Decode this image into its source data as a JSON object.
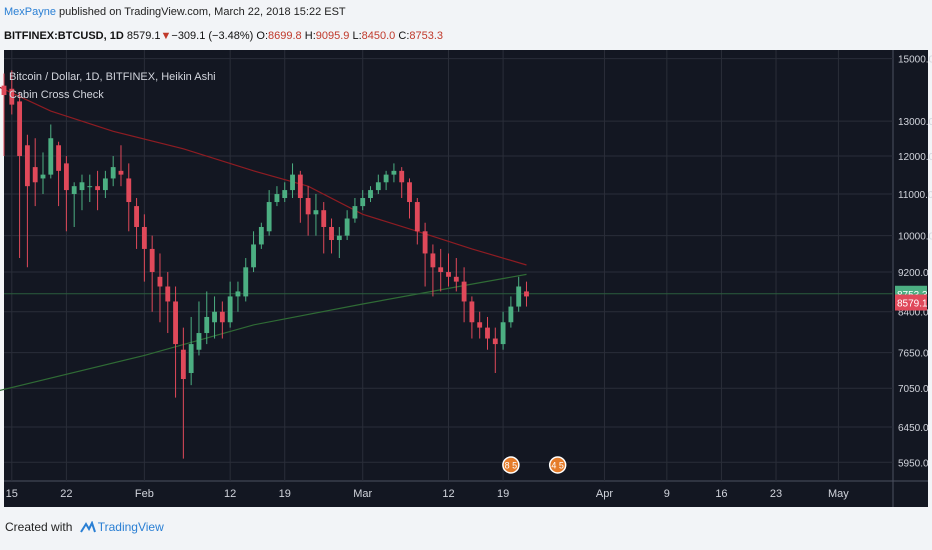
{
  "header": {
    "author": "MexPayne",
    "published_text": "published on TradingView.com, March 22, 2018 15:22 EST",
    "symbol": "BITFINEX:BTCUSD, 1D",
    "last": "8579.1",
    "change": "−309.1 (−3.48%)",
    "o_label": "O:",
    "o_value": "8699.8",
    "h_label": "H:",
    "h_value": "9095.9",
    "l_label": "L:",
    "l_value": "8450.0",
    "c_label": "C:",
    "c_value": "8753.3"
  },
  "legend": {
    "series_title": "Bitcoin / Dollar, 1D, BITFINEX, Heikin Ashi",
    "indicator_title": "Cabin Cross Check"
  },
  "footer": {
    "created_with": "Created with",
    "brand": "TradingView"
  },
  "colors": {
    "background": "#131722",
    "grid": "#2a2e39",
    "up": "#4caf82",
    "down": "#e0495a",
    "ma_red": "#8e1c22",
    "ma_green": "#2f6b35",
    "price_line": "#2a5d3c"
  },
  "chart_data": {
    "type": "candlestick",
    "style": "Heikin Ashi",
    "yscale": "log",
    "ylim": [
      5700,
      15300
    ],
    "xlim": [
      "2018-01-14",
      "2018-05-08"
    ],
    "y_ticks": [
      15000.0,
      13000.0,
      12000.0,
      11000.0,
      10000.0,
      9200.0,
      8400.0,
      7650.0,
      7050.0,
      6450.0,
      5950.0
    ],
    "x_ticks": [
      {
        "date": "2018-01-15",
        "label": "15"
      },
      {
        "date": "2018-01-22",
        "label": "22"
      },
      {
        "date": "2018-02-01",
        "label": "Feb"
      },
      {
        "date": "2018-02-12",
        "label": "12"
      },
      {
        "date": "2018-02-19",
        "label": "19"
      },
      {
        "date": "2018-03-01",
        "label": "Mar"
      },
      {
        "date": "2018-03-12",
        "label": "12"
      },
      {
        "date": "2018-03-19",
        "label": "19"
      },
      {
        "date": "2018-04-01",
        "label": "Apr"
      },
      {
        "date": "2018-04-09",
        "label": "9"
      },
      {
        "date": "2018-04-16",
        "label": "16"
      },
      {
        "date": "2018-04-23",
        "label": "23"
      },
      {
        "date": "2018-05-01",
        "label": "May"
      }
    ],
    "candles": [
      {
        "date": "2018-01-13",
        "o": 14300,
        "h": 14500,
        "l": 11800,
        "c": 13900
      },
      {
        "date": "2018-01-14",
        "o": 14100,
        "h": 14500,
        "l": 12000,
        "c": 13800
      },
      {
        "date": "2018-01-15",
        "o": 14000,
        "h": 14600,
        "l": 13200,
        "c": 13500
      },
      {
        "date": "2018-01-16",
        "o": 13600,
        "h": 13900,
        "l": 9500,
        "c": 12000
      },
      {
        "date": "2018-01-17",
        "o": 12300,
        "h": 12600,
        "l": 9300,
        "c": 11200
      },
      {
        "date": "2018-01-18",
        "o": 11700,
        "h": 12500,
        "l": 10700,
        "c": 11300
      },
      {
        "date": "2018-01-19",
        "o": 11400,
        "h": 12100,
        "l": 11000,
        "c": 11500
      },
      {
        "date": "2018-01-20",
        "o": 11500,
        "h": 12900,
        "l": 11400,
        "c": 12500
      },
      {
        "date": "2018-01-21",
        "o": 12300,
        "h": 12400,
        "l": 10700,
        "c": 11600
      },
      {
        "date": "2018-01-22",
        "o": 11800,
        "h": 12000,
        "l": 10100,
        "c": 11100
      },
      {
        "date": "2018-01-23",
        "o": 11000,
        "h": 11300,
        "l": 10200,
        "c": 11200
      },
      {
        "date": "2018-01-24",
        "o": 11100,
        "h": 11500,
        "l": 10600,
        "c": 11300
      },
      {
        "date": "2018-01-25",
        "o": 11200,
        "h": 11500,
        "l": 10800,
        "c": 11200
      },
      {
        "date": "2018-01-26",
        "o": 11200,
        "h": 11600,
        "l": 10600,
        "c": 11100
      },
      {
        "date": "2018-01-27",
        "o": 11100,
        "h": 11600,
        "l": 10900,
        "c": 11400
      },
      {
        "date": "2018-01-28",
        "o": 11400,
        "h": 12000,
        "l": 11200,
        "c": 11700
      },
      {
        "date": "2018-01-29",
        "o": 11600,
        "h": 12300,
        "l": 11200,
        "c": 11500
      },
      {
        "date": "2018-01-30",
        "o": 11400,
        "h": 11800,
        "l": 10100,
        "c": 10800
      },
      {
        "date": "2018-01-31",
        "o": 10700,
        "h": 10900,
        "l": 9700,
        "c": 10200
      },
      {
        "date": "2018-02-01",
        "o": 10200,
        "h": 10500,
        "l": 9000,
        "c": 9700
      },
      {
        "date": "2018-02-02",
        "o": 9700,
        "h": 10000,
        "l": 8400,
        "c": 9200
      },
      {
        "date": "2018-02-03",
        "o": 9100,
        "h": 9600,
        "l": 8200,
        "c": 8900
      },
      {
        "date": "2018-02-04",
        "o": 8900,
        "h": 9200,
        "l": 8000,
        "c": 8600
      },
      {
        "date": "2018-02-05",
        "o": 8600,
        "h": 8900,
        "l": 6900,
        "c": 7800
      },
      {
        "date": "2018-02-06",
        "o": 7700,
        "h": 8100,
        "l": 6000,
        "c": 7200
      },
      {
        "date": "2018-02-07",
        "o": 7300,
        "h": 8300,
        "l": 7100,
        "c": 7800
      },
      {
        "date": "2018-02-08",
        "o": 7700,
        "h": 8600,
        "l": 7600,
        "c": 8000
      },
      {
        "date": "2018-02-09",
        "o": 8000,
        "h": 8800,
        "l": 7800,
        "c": 8300
      },
      {
        "date": "2018-02-10",
        "o": 8200,
        "h": 8700,
        "l": 7900,
        "c": 8400
      },
      {
        "date": "2018-02-11",
        "o": 8400,
        "h": 8600,
        "l": 7900,
        "c": 8200
      },
      {
        "date": "2018-02-12",
        "o": 8200,
        "h": 9000,
        "l": 8100,
        "c": 8700
      },
      {
        "date": "2018-02-13",
        "o": 8700,
        "h": 9000,
        "l": 8400,
        "c": 8800
      },
      {
        "date": "2018-02-14",
        "o": 8700,
        "h": 9500,
        "l": 8600,
        "c": 9300
      },
      {
        "date": "2018-02-15",
        "o": 9300,
        "h": 10100,
        "l": 9200,
        "c": 9800
      },
      {
        "date": "2018-02-16",
        "o": 9800,
        "h": 10300,
        "l": 9700,
        "c": 10200
      },
      {
        "date": "2018-02-17",
        "o": 10100,
        "h": 11100,
        "l": 10000,
        "c": 10800
      },
      {
        "date": "2018-02-18",
        "o": 10800,
        "h": 11200,
        "l": 10700,
        "c": 11000
      },
      {
        "date": "2018-02-19",
        "o": 10900,
        "h": 11300,
        "l": 10800,
        "c": 11100
      },
      {
        "date": "2018-02-20",
        "o": 11100,
        "h": 11800,
        "l": 10900,
        "c": 11500
      },
      {
        "date": "2018-02-21",
        "o": 11500,
        "h": 11600,
        "l": 10300,
        "c": 10900
      },
      {
        "date": "2018-02-22",
        "o": 10900,
        "h": 11200,
        "l": 10000,
        "c": 10500
      },
      {
        "date": "2018-02-23",
        "o": 10500,
        "h": 11000,
        "l": 10000,
        "c": 10600
      },
      {
        "date": "2018-02-24",
        "o": 10600,
        "h": 10800,
        "l": 9600,
        "c": 10200
      },
      {
        "date": "2018-02-25",
        "o": 10200,
        "h": 10400,
        "l": 9600,
        "c": 9900
      },
      {
        "date": "2018-02-26",
        "o": 9900,
        "h": 10200,
        "l": 9500,
        "c": 10000
      },
      {
        "date": "2018-02-27",
        "o": 10000,
        "h": 10600,
        "l": 9900,
        "c": 10400
      },
      {
        "date": "2018-02-28",
        "o": 10400,
        "h": 10900,
        "l": 10300,
        "c": 10700
      },
      {
        "date": "2018-03-01",
        "o": 10700,
        "h": 11100,
        "l": 10600,
        "c": 10900
      },
      {
        "date": "2018-03-02",
        "o": 10900,
        "h": 11200,
        "l": 10800,
        "c": 11100
      },
      {
        "date": "2018-03-03",
        "o": 11100,
        "h": 11500,
        "l": 11000,
        "c": 11300
      },
      {
        "date": "2018-03-04",
        "o": 11300,
        "h": 11600,
        "l": 11100,
        "c": 11500
      },
      {
        "date": "2018-03-05",
        "o": 11500,
        "h": 11800,
        "l": 11300,
        "c": 11600
      },
      {
        "date": "2018-03-06",
        "o": 11600,
        "h": 11700,
        "l": 10900,
        "c": 11300
      },
      {
        "date": "2018-03-07",
        "o": 11300,
        "h": 11400,
        "l": 10400,
        "c": 10800
      },
      {
        "date": "2018-03-08",
        "o": 10800,
        "h": 10900,
        "l": 9800,
        "c": 10100
      },
      {
        "date": "2018-03-09",
        "o": 10100,
        "h": 10300,
        "l": 8900,
        "c": 9600
      },
      {
        "date": "2018-03-10",
        "o": 9600,
        "h": 9800,
        "l": 8700,
        "c": 9300
      },
      {
        "date": "2018-03-11",
        "o": 9300,
        "h": 9700,
        "l": 8800,
        "c": 9200
      },
      {
        "date": "2018-03-12",
        "o": 9200,
        "h": 9600,
        "l": 8900,
        "c": 9100
      },
      {
        "date": "2018-03-13",
        "o": 9100,
        "h": 9500,
        "l": 8800,
        "c": 9000
      },
      {
        "date": "2018-03-14",
        "o": 9000,
        "h": 9300,
        "l": 8200,
        "c": 8600
      },
      {
        "date": "2018-03-15",
        "o": 8600,
        "h": 8700,
        "l": 7900,
        "c": 8200
      },
      {
        "date": "2018-03-16",
        "o": 8200,
        "h": 8400,
        "l": 7900,
        "c": 8100
      },
      {
        "date": "2018-03-17",
        "o": 8100,
        "h": 8300,
        "l": 7700,
        "c": 7900
      },
      {
        "date": "2018-03-18",
        "o": 7900,
        "h": 8100,
        "l": 7300,
        "c": 7800
      },
      {
        "date": "2018-03-19",
        "o": 7800,
        "h": 8400,
        "l": 7700,
        "c": 8200
      },
      {
        "date": "2018-03-20",
        "o": 8200,
        "h": 8700,
        "l": 8100,
        "c": 8500
      },
      {
        "date": "2018-03-21",
        "o": 8500,
        "h": 9100,
        "l": 8400,
        "c": 8900
      },
      {
        "date": "2018-03-22",
        "o": 8800,
        "h": 9000,
        "l": 8500,
        "c": 8700
      }
    ],
    "indicators": [
      {
        "color": "red",
        "points": [
          [
            "2018-01-13",
            14100
          ],
          [
            "2018-01-20",
            13300
          ],
          [
            "2018-01-28",
            12700
          ],
          [
            "2018-02-06",
            12200
          ],
          [
            "2018-02-15",
            11600
          ],
          [
            "2018-02-22",
            11200
          ],
          [
            "2018-03-01",
            10500
          ],
          [
            "2018-03-08",
            10100
          ],
          [
            "2018-03-15",
            9700
          ],
          [
            "2018-03-22",
            9350
          ]
        ]
      },
      {
        "color": "green",
        "points": [
          [
            "2018-01-13",
            7000
          ],
          [
            "2018-02-01",
            7600
          ],
          [
            "2018-02-15",
            8150
          ],
          [
            "2018-03-01",
            8550
          ],
          [
            "2018-03-15",
            8950
          ],
          [
            "2018-03-22",
            9150
          ]
        ]
      }
    ],
    "last_close": {
      "value": 8753.3,
      "label": "8753.3"
    },
    "last_price": {
      "value": 8579.1,
      "label": "8579.1"
    },
    "events": [
      {
        "date": "2018-03-20",
        "label": "8 5"
      },
      {
        "date": "2018-03-26",
        "label": "4 5"
      }
    ]
  }
}
